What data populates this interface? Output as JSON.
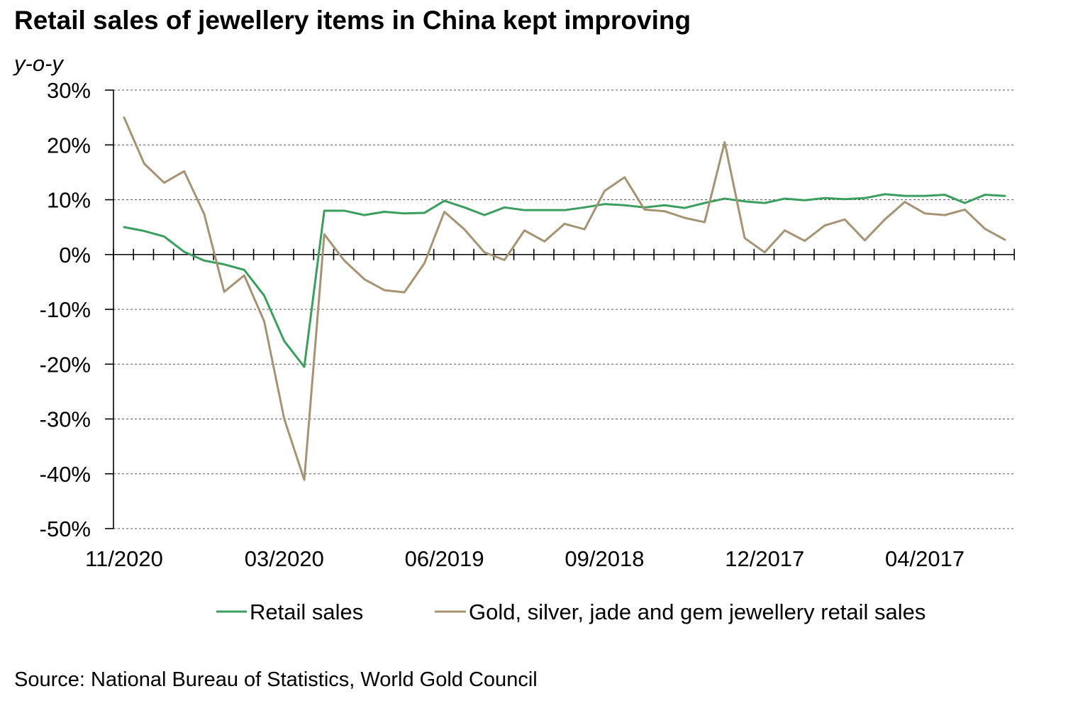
{
  "title": "Retail sales of jewellery items in China kept improving",
  "unit_label": "y-o-y",
  "source": "Source: National Bureau of Statistics, World Gold Council",
  "chart_data": {
    "type": "line",
    "title": "Retail sales of jewellery items in China kept improving",
    "xlabel": "",
    "ylabel": "y-o-y",
    "ylim": [
      -50,
      30
    ],
    "ytick_values": [
      -50,
      -40,
      -30,
      -20,
      -10,
      0,
      10,
      20,
      30
    ],
    "ytick_labels": [
      "-50%",
      "-40%",
      "-30%",
      "-20%",
      "-10%",
      "0%",
      "10%",
      "20%",
      "30%"
    ],
    "xtick_labels": [
      {
        "index": 0,
        "label": "11/2020"
      },
      {
        "index": 8,
        "label": "03/2020"
      },
      {
        "index": 16,
        "label": "06/2019"
      },
      {
        "index": 24,
        "label": "09/2018"
      },
      {
        "index": 32,
        "label": "12/2017"
      },
      {
        "index": 40,
        "label": "04/2017"
      }
    ],
    "grid": true,
    "legend_position": "bottom",
    "series": [
      {
        "name": "Retail sales",
        "color": "#3a9e5c",
        "values": [
          5.0,
          4.3,
          3.3,
          0.5,
          -1.1,
          -1.8,
          -2.8,
          -7.5,
          -15.8,
          -20.5,
          8.0,
          8.0,
          7.2,
          7.8,
          7.5,
          7.6,
          9.8,
          8.6,
          7.2,
          8.6,
          8.1,
          8.1,
          8.1,
          8.6,
          9.2,
          9.0,
          8.6,
          9.0,
          8.5,
          9.4,
          10.2,
          9.7,
          9.4,
          10.2,
          9.9,
          10.3,
          10.1,
          10.3,
          11.0,
          10.7,
          10.7,
          10.9,
          9.4,
          10.9,
          10.7
        ]
      },
      {
        "name": "Gold, silver, jade and gem jewellery retail sales",
        "color": "#a69372",
        "values": [
          25.0,
          16.6,
          13.1,
          15.2,
          7.4,
          -6.8,
          -3.8,
          -12.2,
          -30.0,
          -41.1,
          3.7,
          -1.1,
          -4.5,
          -6.5,
          -6.9,
          -1.6,
          7.8,
          4.6,
          0.4,
          -1.0,
          4.4,
          2.4,
          5.6,
          4.6,
          11.6,
          14.1,
          8.2,
          7.9,
          6.7,
          5.9,
          20.5,
          3.0,
          0.4,
          4.4,
          2.5,
          5.3,
          6.4,
          2.6,
          6.4,
          9.6,
          7.5,
          7.2,
          8.2,
          4.7,
          2.7
        ]
      }
    ]
  }
}
